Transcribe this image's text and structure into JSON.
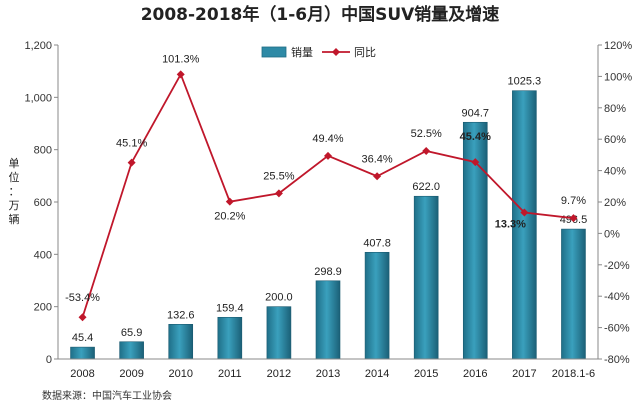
{
  "chart_data": {
    "type": "bar+line",
    "title": "2008-2018年（1-6月）中国SUV销量及增速",
    "categories": [
      "2008",
      "2009",
      "2010",
      "2011",
      "2012",
      "2013",
      "2014",
      "2015",
      "2016",
      "2017",
      "2018.1-6"
    ],
    "series": [
      {
        "name": "销量",
        "type": "bar",
        "axis": "left",
        "values": [
          45.4,
          65.9,
          132.6,
          159.4,
          200.0,
          298.9,
          407.8,
          622.0,
          904.7,
          1025.3,
          496.5
        ],
        "labels": [
          "45.4",
          "65.9",
          "132.6",
          "159.4",
          "200.0",
          "298.9",
          "407.8",
          "622.0",
          "904.7",
          "1025.3",
          "496.5"
        ],
        "color": "#2e8aa6"
      },
      {
        "name": "同比",
        "type": "line",
        "axis": "right",
        "values": [
          -53.4,
          45.1,
          101.3,
          20.2,
          25.5,
          49.4,
          36.4,
          52.5,
          45.4,
          13.3,
          9.7
        ],
        "labels": [
          "-53.4%",
          "45.1%",
          "101.3%",
          "20.2%",
          "25.5%",
          "49.4%",
          "36.4%",
          "52.5%",
          "45.4%",
          "13.3%",
          "9.7%"
        ],
        "color": "#c0172b"
      }
    ],
    "ylim_left": [
      0,
      1200
    ],
    "yticks_left": [
      "0",
      "200",
      "400",
      "600",
      "800",
      "1,000",
      "1,200"
    ],
    "ylim_right": [
      -80,
      120
    ],
    "yticks_right": [
      "-80%",
      "-60%",
      "-40%",
      "-20%",
      "0%",
      "20%",
      "40%",
      "60%",
      "80%",
      "100%",
      "120%"
    ],
    "ylabel_left": "单位：万辆",
    "legend": [
      "销量",
      "同比"
    ],
    "legend_position": "top-center",
    "source": "数据来源：中国汽车工业协会"
  }
}
